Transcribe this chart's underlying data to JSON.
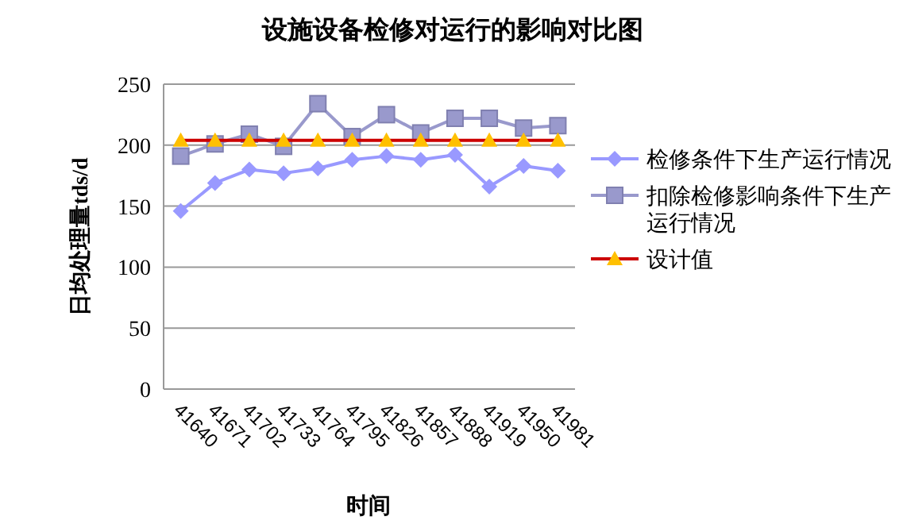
{
  "chart_data": {
    "type": "line",
    "title": "设施设备检修对运行的影响对比图",
    "xlabel": "时间",
    "ylabel": "日均处理量tds/d",
    "categories": [
      "41640",
      "41671",
      "41702",
      "41733",
      "41764",
      "41795",
      "41826",
      "41857",
      "41888",
      "41919",
      "41950",
      "41981"
    ],
    "series": [
      {
        "name": "检修条件下生产运行情况",
        "color": "#9999ff",
        "marker": "diamond",
        "values": [
          146,
          169,
          180,
          177,
          181,
          188,
          191,
          188,
          192,
          166,
          183,
          179
        ]
      },
      {
        "name": "扣除检修影响条件下生产运行情况",
        "color": "#9999cc",
        "marker": "square",
        "values": [
          191,
          201,
          209,
          199,
          234,
          207,
          225,
          210,
          222,
          222,
          214,
          216
        ]
      },
      {
        "name": "设计值",
        "color": "#cc0000",
        "marker": "triangle",
        "colors": [
          "#ffc000",
          "#ffc000",
          "#ffc000",
          "#ffc000",
          "#ffc000",
          "#ffc000",
          "#ffc000",
          "#ffc000",
          "#ffc000",
          "#ffc000",
          "#ffc000",
          "#ffc000"
        ],
        "values": [
          204,
          204,
          204,
          204,
          204,
          204,
          204,
          204,
          204,
          204,
          204,
          204
        ]
      }
    ],
    "ylim": [
      0,
      250
    ],
    "yticks": [
      0,
      50,
      100,
      150,
      200,
      250
    ],
    "grid": "y",
    "legend": "right"
  }
}
